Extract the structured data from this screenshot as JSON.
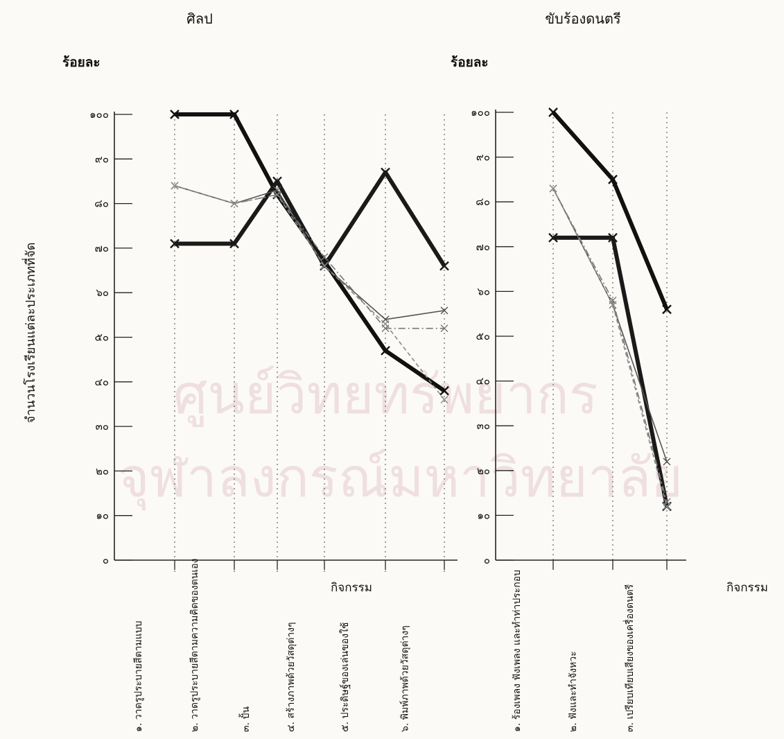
{
  "watermark": {
    "line1": "ศูนย์วิทยทรัพยากร",
    "line2": "จุฬาลงกรณ์มหาวิทยาลัย"
  },
  "y_axis_label": "จำนวนโรงเรียนแต่ละประเภทที่จัด",
  "chart_data": [
    {
      "type": "line",
      "title": "ศิลป",
      "ylabel": "ร้อยละ",
      "xlabel": "กิจกรรม",
      "ylim": [
        0,
        100
      ],
      "yticks": [
        "๐",
        "๑๐",
        "๒๐",
        "๓๐",
        "๔๐",
        "๕๐",
        "๖๐",
        "๗๐",
        "๘๐",
        "๙๐",
        "๑๐๐"
      ],
      "categories": [
        "๑. วาดรูประบายสีตามแบบ",
        "๒. วาดรูประบายสีตามความคิดของตนเอง",
        "๓. ปั้น",
        "๔. สร้างภาพด้วยวัสดุต่างๆ",
        "๕. ประดิษฐ์ของเล่นของใช้",
        "๖. พิมพ์ภาพด้วยวัสดุต่างๆ"
      ],
      "series": [
        {
          "values": [
            100,
            100,
            82,
            67,
            47,
            38
          ],
          "color": "#111111",
          "style": "heavy"
        },
        {
          "values": [
            71,
            71,
            85,
            66,
            87,
            66
          ],
          "color": "#1a1a1a",
          "style": "heavy"
        },
        {
          "values": [
            84,
            80,
            83,
            66,
            54,
            56
          ],
          "color": "#555555",
          "style": "thin"
        },
        {
          "values": [
            84,
            80,
            82,
            68,
            52,
            52
          ],
          "color": "#777777",
          "style": "dashdot"
        },
        {
          "values": [
            84,
            80,
            82,
            66,
            53,
            36
          ],
          "color": "#8a8a8a",
          "style": "dashed"
        }
      ]
    },
    {
      "type": "line",
      "title": "ขับร้องดนตรี",
      "ylabel": "ร้อยละ",
      "xlabel": "กิจกรรม",
      "ylim": [
        0,
        100
      ],
      "yticks": [
        "๐",
        "๑๐",
        "๒๐",
        "๓๐",
        "๔๐",
        "๕๐",
        "๖๐",
        "๗๐",
        "๘๐",
        "๙๐",
        "๑๐๐"
      ],
      "categories": [
        "๑. ร้องเพลง ฟังเพลง และทำท่าประกอบ",
        "๒. ฟังและทำจังหวะ",
        "๓. เปรียบเทียบเสียงของเครื่องดนตรี"
      ],
      "series": [
        {
          "values": [
            100,
            85,
            56
          ],
          "color": "#111111",
          "style": "heavy"
        },
        {
          "values": [
            72,
            72,
            12
          ],
          "color": "#1a1a1a",
          "style": "heavy"
        },
        {
          "values": [
            83,
            57,
            22
          ],
          "color": "#555555",
          "style": "thin"
        },
        {
          "values": [
            83,
            58,
            13
          ],
          "color": "#777777",
          "style": "dashdot"
        },
        {
          "values": [
            83,
            57,
            12
          ],
          "color": "#8a8a8a",
          "style": "dashed"
        }
      ]
    }
  ]
}
